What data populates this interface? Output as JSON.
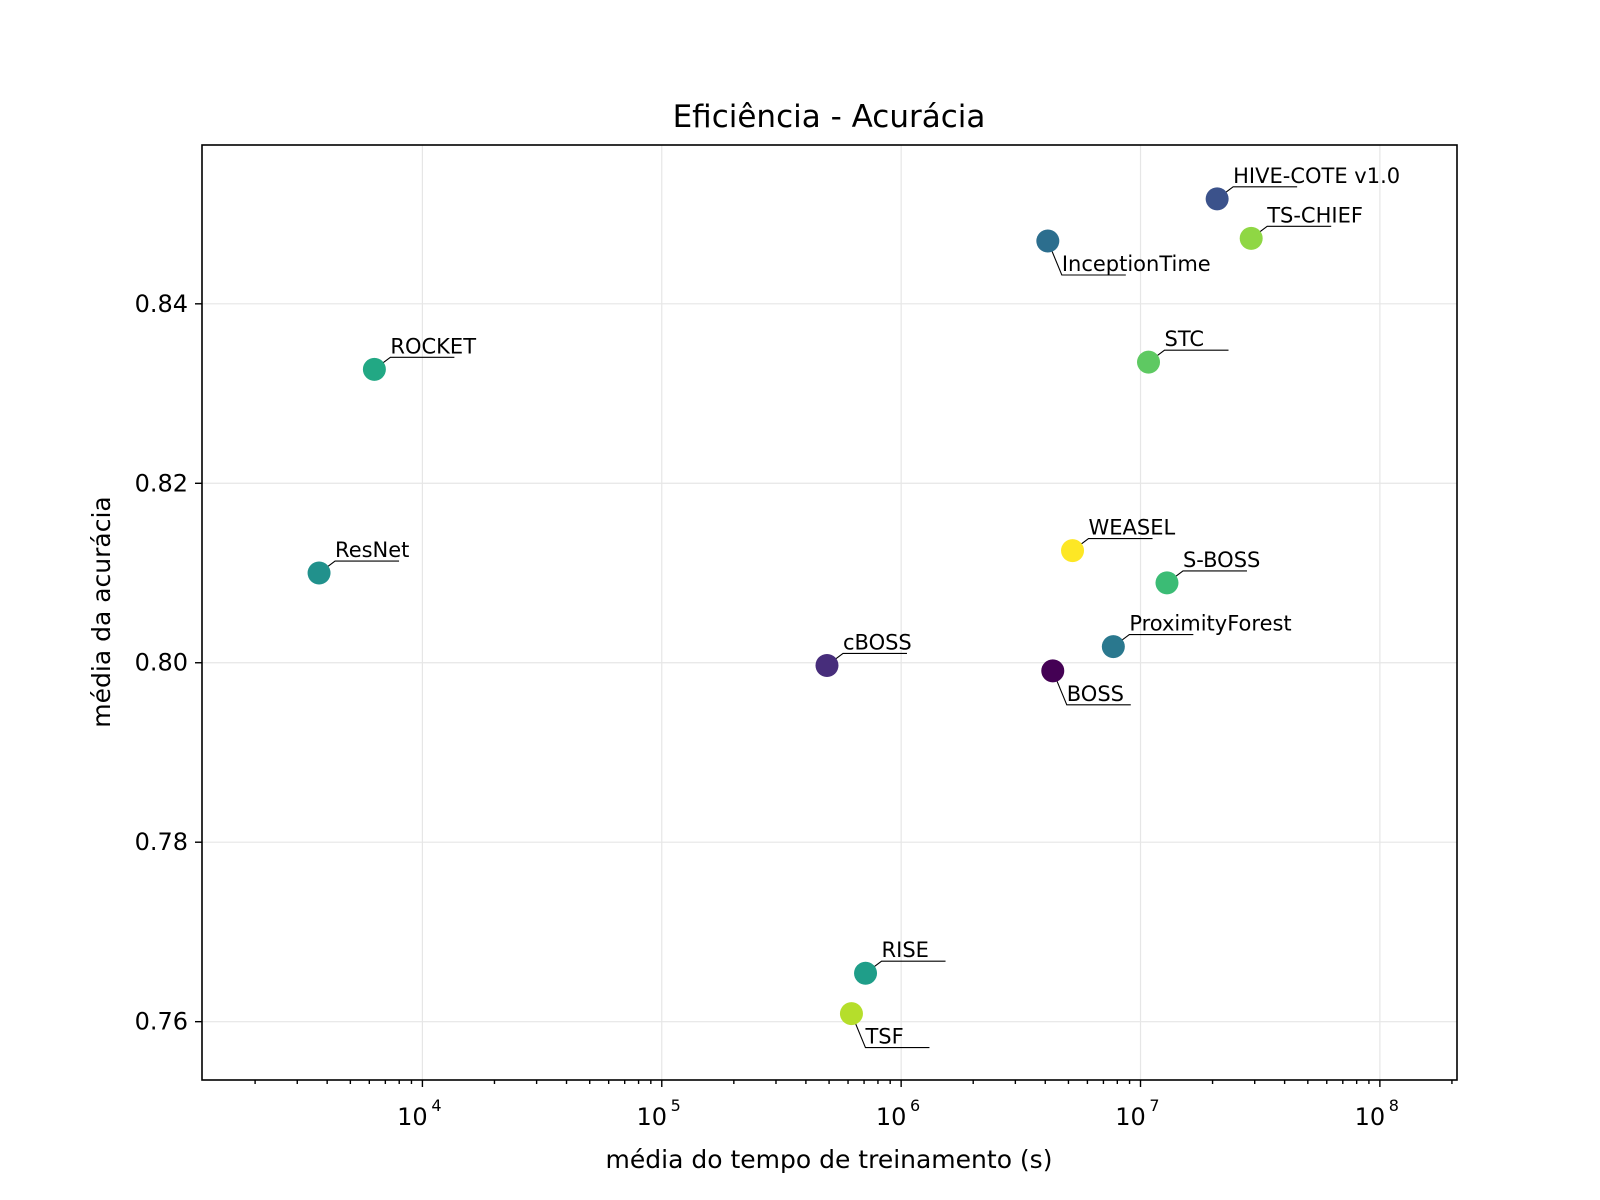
{
  "chart_data": {
    "type": "scatter",
    "title": "Eficiência - Acurácia",
    "xlabel": "média do tempo de treinamento (s)",
    "ylabel": "média da acurácia",
    "x_scale": "log",
    "xlim": [
      1200,
      210000000
    ],
    "ylim": [
      0.7535,
      0.8577
    ],
    "x_ticks": [
      {
        "base": "10",
        "exp": "4",
        "value": 10000
      },
      {
        "base": "10",
        "exp": "5",
        "value": 100000
      },
      {
        "base": "10",
        "exp": "6",
        "value": 1000000
      },
      {
        "base": "10",
        "exp": "7",
        "value": 10000000
      },
      {
        "base": "10",
        "exp": "8",
        "value": 100000000
      }
    ],
    "y_ticks": [
      {
        "label": "0.76",
        "value": 0.76
      },
      {
        "label": "0.78",
        "value": 0.78
      },
      {
        "label": "0.80",
        "value": 0.8
      },
      {
        "label": "0.82",
        "value": 0.82
      },
      {
        "label": "0.84",
        "value": 0.84
      }
    ],
    "grid": true,
    "colormap": "viridis",
    "points": [
      {
        "label": "HIVE-COTE v1.0",
        "x": 20900000,
        "y": 0.8517,
        "color": "#3b528b",
        "label_pos": "up"
      },
      {
        "label": "TS-CHIEF",
        "x": 29000000,
        "y": 0.8473,
        "color": "#8fd744",
        "label_pos": "up"
      },
      {
        "label": "InceptionTime",
        "x": 4100000,
        "y": 0.847,
        "color": "#2c6e8e",
        "label_pos": "down"
      },
      {
        "label": "STC",
        "x": 10800000,
        "y": 0.8335,
        "color": "#5ec962",
        "label_pos": "up"
      },
      {
        "label": "ROCKET",
        "x": 6300,
        "y": 0.8327,
        "color": "#22a884",
        "label_pos": "up"
      },
      {
        "label": "WEASEL",
        "x": 5200000,
        "y": 0.8125,
        "color": "#fde725",
        "label_pos": "up"
      },
      {
        "label": "ResNet",
        "x": 3700,
        "y": 0.81,
        "color": "#21918c",
        "label_pos": "up"
      },
      {
        "label": "S-BOSS",
        "x": 12900000,
        "y": 0.8089,
        "color": "#3bbc75",
        "label_pos": "up"
      },
      {
        "label": "ProximityForest",
        "x": 7700000,
        "y": 0.8018,
        "color": "#2a788e",
        "label_pos": "up"
      },
      {
        "label": "cBOSS",
        "x": 490000,
        "y": 0.7997,
        "color": "#472d7b",
        "label_pos": "up"
      },
      {
        "label": "BOSS",
        "x": 4300000,
        "y": 0.7991,
        "color": "#440154",
        "label_pos": "down"
      },
      {
        "label": "RISE",
        "x": 710000,
        "y": 0.7654,
        "color": "#1f9e89",
        "label_pos": "up"
      },
      {
        "label": "TSF",
        "x": 620000,
        "y": 0.7609,
        "color": "#b5de2b",
        "label_pos": "down"
      }
    ]
  }
}
